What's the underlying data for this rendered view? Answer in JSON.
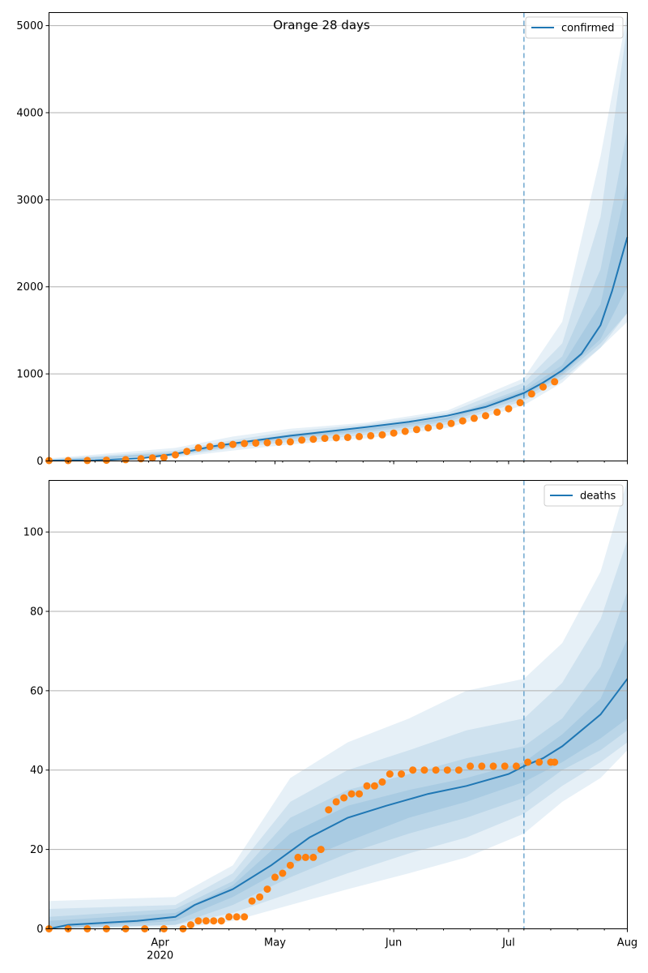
{
  "chart_data": [
    {
      "type": "line",
      "title": "Orange 28 days",
      "xlabel": "",
      "ylabel": "",
      "x_domain": [
        "2020-03-03",
        "2020-08-01"
      ],
      "ylim": [
        0,
        5150
      ],
      "yticks": [
        0,
        1000,
        2000,
        3000,
        4000,
        5000
      ],
      "grid": "y",
      "legend": {
        "placement": "top-right",
        "entries": [
          "confirmed"
        ]
      },
      "forecast_start": "2020-07-05",
      "series": [
        {
          "name": "confirmed",
          "kind": "line",
          "color": "#1f77b4",
          "x": [
            "2020-03-03",
            "2020-03-15",
            "2020-03-27",
            "2020-04-05",
            "2020-04-15",
            "2020-04-25",
            "2020-05-05",
            "2020-05-15",
            "2020-05-25",
            "2020-06-05",
            "2020-06-15",
            "2020-06-25",
            "2020-07-05",
            "2020-07-10",
            "2020-07-15",
            "2020-07-20",
            "2020-07-25",
            "2020-07-28",
            "2020-08-01"
          ],
          "y": [
            5,
            8,
            30,
            80,
            170,
            230,
            290,
            340,
            390,
            450,
            520,
            620,
            780,
            900,
            1040,
            1230,
            1560,
            1950,
            2570
          ]
        },
        {
          "name": "",
          "kind": "band",
          "color": "#1f77b4",
          "opacity": 0.11,
          "x": [
            "2020-03-03",
            "2020-04-05",
            "2020-04-20",
            "2020-05-05",
            "2020-05-25",
            "2020-06-15",
            "2020-07-05",
            "2020-07-15",
            "2020-07-25",
            "2020-08-01"
          ],
          "lower": [
            0,
            40,
            120,
            190,
            260,
            380,
            640,
            900,
            1300,
            1700
          ],
          "upper": [
            30,
            150,
            280,
            370,
            440,
            580,
            950,
            1600,
            3500,
            5150
          ]
        },
        {
          "name": "",
          "kind": "band",
          "color": "#1f77b4",
          "opacity": 0.11,
          "x": [
            "2020-03-03",
            "2020-04-05",
            "2020-04-20",
            "2020-05-05",
            "2020-05-25",
            "2020-06-15",
            "2020-07-05",
            "2020-07-15",
            "2020-07-25",
            "2020-08-01"
          ],
          "lower": [
            0,
            55,
            150,
            220,
            300,
            420,
            690,
            940,
            1300,
            1600
          ],
          "upper": [
            20,
            120,
            240,
            340,
            420,
            550,
            900,
            1350,
            2800,
            5000
          ]
        },
        {
          "name": "",
          "kind": "band",
          "color": "#1f77b4",
          "opacity": 0.11,
          "x": [
            "2020-03-03",
            "2020-04-05",
            "2020-04-20",
            "2020-05-05",
            "2020-05-25",
            "2020-06-15",
            "2020-07-05",
            "2020-07-15",
            "2020-07-25",
            "2020-08-01"
          ],
          "lower": [
            2,
            65,
            170,
            250,
            330,
            450,
            720,
            980,
            1350,
            1700
          ],
          "upper": [
            12,
            100,
            210,
            310,
            390,
            510,
            840,
            1200,
            2200,
            3800
          ]
        },
        {
          "name": "",
          "kind": "band",
          "color": "#1f77b4",
          "opacity": 0.11,
          "x": [
            "2020-03-03",
            "2020-04-05",
            "2020-04-20",
            "2020-05-05",
            "2020-05-25",
            "2020-06-15",
            "2020-07-05",
            "2020-07-15",
            "2020-07-25",
            "2020-08-01"
          ],
          "lower": [
            3,
            72,
            180,
            265,
            350,
            475,
            750,
            1000,
            1400,
            2000
          ],
          "upper": [
            9,
            90,
            195,
            295,
            375,
            495,
            810,
            1100,
            1800,
            3200
          ]
        },
        {
          "name": "",
          "kind": "scatter",
          "color": "#ff7f0e",
          "x": [
            "2020-03-03",
            "2020-03-08",
            "2020-03-13",
            "2020-03-18",
            "2020-03-23",
            "2020-03-27",
            "2020-03-30",
            "2020-04-02",
            "2020-04-05",
            "2020-04-08",
            "2020-04-11",
            "2020-04-14",
            "2020-04-17",
            "2020-04-20",
            "2020-04-23",
            "2020-04-26",
            "2020-04-29",
            "2020-05-02",
            "2020-05-05",
            "2020-05-08",
            "2020-05-11",
            "2020-05-14",
            "2020-05-17",
            "2020-05-20",
            "2020-05-23",
            "2020-05-26",
            "2020-05-29",
            "2020-06-01",
            "2020-06-04",
            "2020-06-07",
            "2020-06-10",
            "2020-06-13",
            "2020-06-16",
            "2020-06-19",
            "2020-06-22",
            "2020-06-25",
            "2020-06-28",
            "2020-07-01",
            "2020-07-04",
            "2020-07-07",
            "2020-07-10",
            "2020-07-13"
          ],
          "y": [
            5,
            5,
            6,
            8,
            15,
            25,
            35,
            40,
            70,
            110,
            150,
            165,
            180,
            190,
            200,
            205,
            210,
            215,
            220,
            240,
            250,
            260,
            265,
            270,
            280,
            290,
            300,
            320,
            340,
            360,
            380,
            400,
            430,
            460,
            490,
            520,
            560,
            600,
            670,
            770,
            850,
            910
          ]
        }
      ]
    },
    {
      "type": "line",
      "title": "",
      "xlabel": "",
      "ylabel": "",
      "x_domain": [
        "2020-03-03",
        "2020-08-01"
      ],
      "xticks": [
        {
          "date": "2020-04-01",
          "label": "Apr",
          "sublabel": "2020"
        },
        {
          "date": "2020-05-01",
          "label": "May",
          "sublabel": ""
        },
        {
          "date": "2020-06-01",
          "label": "Jun",
          "sublabel": ""
        },
        {
          "date": "2020-07-01",
          "label": "Jul",
          "sublabel": ""
        },
        {
          "date": "2020-08-01",
          "label": "Aug",
          "sublabel": ""
        }
      ],
      "ylim": [
        0,
        113
      ],
      "yticks": [
        0,
        20,
        40,
        60,
        80,
        100
      ],
      "grid": "y",
      "legend": {
        "placement": "top-right",
        "entries": [
          "deaths"
        ]
      },
      "forecast_start": "2020-07-05",
      "series": [
        {
          "name": "deaths",
          "kind": "line",
          "color": "#1f77b4",
          "x": [
            "2020-03-03",
            "2020-03-08",
            "2020-03-26",
            "2020-04-05",
            "2020-04-10",
            "2020-04-20",
            "2020-04-30",
            "2020-05-10",
            "2020-05-20",
            "2020-05-30",
            "2020-06-10",
            "2020-06-20",
            "2020-07-01",
            "2020-07-05",
            "2020-07-10",
            "2020-07-15",
            "2020-07-20",
            "2020-07-25",
            "2020-08-01"
          ],
          "y": [
            0,
            1,
            2,
            3,
            6,
            10,
            16,
            23,
            28,
            31,
            34,
            36,
            39,
            41,
            43,
            46,
            50,
            54,
            63
          ]
        },
        {
          "name": "",
          "kind": "band",
          "color": "#1f77b4",
          "opacity": 0.11,
          "x": [
            "2020-03-03",
            "2020-04-05",
            "2020-04-20",
            "2020-05-05",
            "2020-05-20",
            "2020-06-05",
            "2020-06-20",
            "2020-07-05",
            "2020-07-15",
            "2020-07-25",
            "2020-08-01"
          ],
          "lower": [
            0,
            0,
            2,
            6,
            10,
            14,
            18,
            24,
            32,
            38,
            45
          ],
          "upper": [
            7,
            8,
            16,
            38,
            47,
            53,
            60,
            63,
            72,
            90,
            113
          ]
        },
        {
          "name": "",
          "kind": "band",
          "color": "#1f77b4",
          "opacity": 0.11,
          "x": [
            "2020-03-03",
            "2020-04-05",
            "2020-04-20",
            "2020-05-05",
            "2020-05-20",
            "2020-06-05",
            "2020-06-20",
            "2020-07-05",
            "2020-07-15",
            "2020-07-25",
            "2020-08-01"
          ],
          "lower": [
            0,
            1,
            4,
            9,
            14,
            19,
            23,
            29,
            36,
            42,
            47
          ],
          "upper": [
            5,
            6,
            14,
            32,
            40,
            45,
            50,
            53,
            62,
            78,
            98
          ]
        },
        {
          "name": "",
          "kind": "band",
          "color": "#1f77b4",
          "opacity": 0.11,
          "x": [
            "2020-03-03",
            "2020-04-05",
            "2020-04-20",
            "2020-05-05",
            "2020-05-20",
            "2020-06-05",
            "2020-06-20",
            "2020-07-05",
            "2020-07-15",
            "2020-07-25",
            "2020-08-01"
          ],
          "lower": [
            0,
            1,
            6,
            13,
            19,
            24,
            28,
            33,
            40,
            45,
            50
          ],
          "upper": [
            3,
            5,
            12,
            28,
            35,
            39,
            43,
            46,
            53,
            66,
            85
          ]
        },
        {
          "name": "",
          "kind": "band",
          "color": "#1f77b4",
          "opacity": 0.11,
          "x": [
            "2020-03-03",
            "2020-04-05",
            "2020-04-20",
            "2020-05-05",
            "2020-05-20",
            "2020-06-05",
            "2020-06-20",
            "2020-07-05",
            "2020-07-15",
            "2020-07-25",
            "2020-08-01"
          ],
          "lower": [
            0,
            2,
            8,
            16,
            22,
            28,
            32,
            37,
            42,
            48,
            53
          ],
          "upper": [
            2,
            4,
            11,
            24,
            31,
            35,
            38,
            42,
            49,
            58,
            73
          ]
        },
        {
          "name": "",
          "kind": "scatter",
          "color": "#ff7f0e",
          "x": [
            "2020-03-03",
            "2020-03-08",
            "2020-03-13",
            "2020-03-18",
            "2020-03-23",
            "2020-03-28",
            "2020-04-02",
            "2020-04-07",
            "2020-04-09",
            "2020-04-11",
            "2020-04-13",
            "2020-04-15",
            "2020-04-17",
            "2020-04-19",
            "2020-04-21",
            "2020-04-23",
            "2020-04-25",
            "2020-04-27",
            "2020-04-29",
            "2020-05-01",
            "2020-05-03",
            "2020-05-05",
            "2020-05-07",
            "2020-05-09",
            "2020-05-11",
            "2020-05-13",
            "2020-05-15",
            "2020-05-17",
            "2020-05-19",
            "2020-05-21",
            "2020-05-23",
            "2020-05-25",
            "2020-05-27",
            "2020-05-29",
            "2020-05-31",
            "2020-06-03",
            "2020-06-06",
            "2020-06-09",
            "2020-06-12",
            "2020-06-15",
            "2020-06-18",
            "2020-06-21",
            "2020-06-24",
            "2020-06-27",
            "2020-06-30",
            "2020-07-03",
            "2020-07-06",
            "2020-07-09",
            "2020-07-12",
            "2020-07-13"
          ],
          "y": [
            0,
            0,
            0,
            0,
            0,
            0,
            0,
            0,
            1,
            2,
            2,
            2,
            2,
            3,
            3,
            3,
            7,
            8,
            10,
            13,
            14,
            16,
            18,
            18,
            18,
            20,
            30,
            32,
            33,
            34,
            34,
            36,
            36,
            37,
            39,
            39,
            40,
            40,
            40,
            40,
            40,
            41,
            41,
            41,
            41,
            41,
            42,
            42,
            42,
            42
          ]
        }
      ]
    }
  ]
}
